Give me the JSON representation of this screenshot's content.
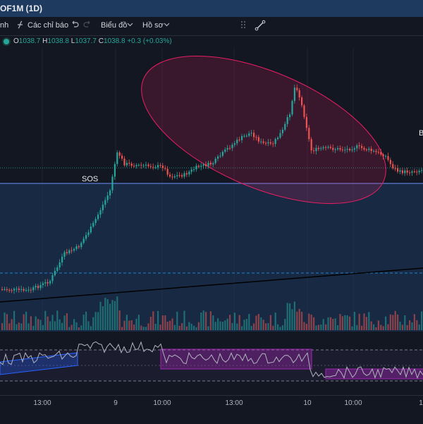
{
  "window": {
    "title": "OF1M (1D)"
  },
  "toolbar": {
    "left_fragment": "nh",
    "indicators_label": "Các chỉ báo",
    "chart_type_label": "Biểu đồ",
    "profile_label": "Hồ sơ"
  },
  "ohlc": {
    "o_label": "O",
    "o_value": "1038.7",
    "h_label": "H",
    "h_value": "1038.8",
    "l_label": "L",
    "l_value": "1037.7",
    "c_label": "C",
    "c_value": "1038.8",
    "change": "+0.3 (+0.03%)"
  },
  "chart_annotations": {
    "sos": "SOS",
    "right_edge": "B"
  },
  "x_axis": {
    "labels": [
      "13:00",
      "9",
      "10:00",
      "13:00",
      "10",
      "10:00",
      "1"
    ]
  },
  "colors": {
    "up": "#26a69a",
    "down": "#ef5350",
    "ellipse": "#e91e63",
    "lower_panel_bg": "#1e3a5f",
    "rsi_line": "#b2b5be",
    "rsi_box": "#9c27b0",
    "rsi_channel": "#2962ff"
  },
  "icons": [
    "indicators-icon",
    "undo-icon",
    "redo-icon",
    "chevron-down-icon",
    "drag-handle-icon",
    "drawing-tool-icon"
  ]
}
